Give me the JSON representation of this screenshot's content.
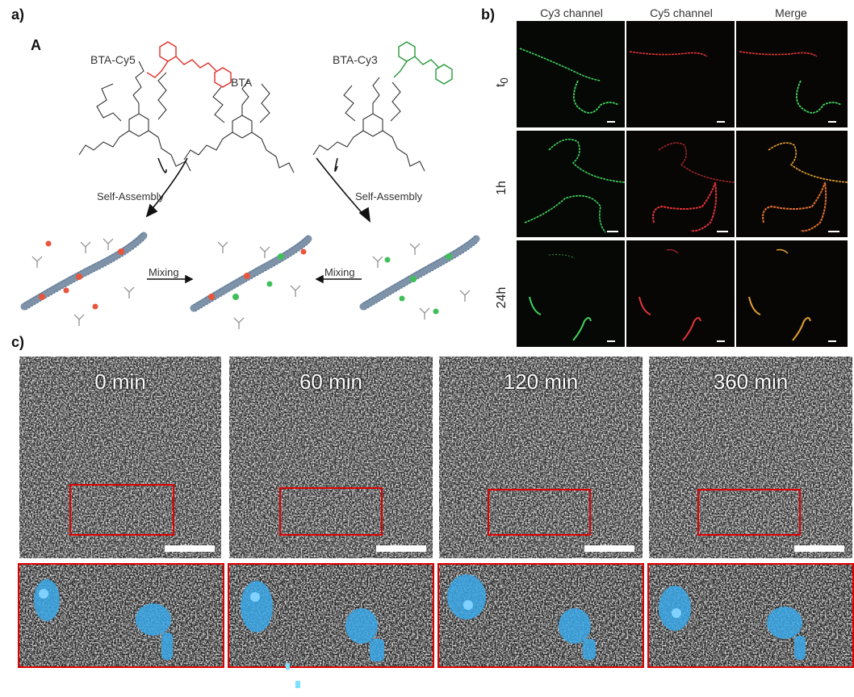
{
  "panel_labels": {
    "a": "a)",
    "b": "b)",
    "c": "c)"
  },
  "scheme": {
    "sublabel": "A",
    "molecules": {
      "left": "BTA-Cy5",
      "center": "BTA",
      "right": "BTA-Cy3"
    },
    "arrows": {
      "left": "Self-Assembly",
      "right": "Self-Assembly"
    },
    "mixing": {
      "left": "Mixing",
      "right": "Mixing"
    },
    "colors": {
      "cy5": "#e0302a",
      "cy3": "#2a9a3a",
      "fiber": "#7f93a8",
      "dye_red": "#e8553c",
      "dye_green": "#3fbf5a"
    }
  },
  "microscopy": {
    "columns": [
      "Cy3 channel",
      "Cy5 channel",
      "Merge"
    ],
    "rows": [
      "t0",
      "1h",
      "24h"
    ],
    "colors": {
      "cy3": "#3fd05a",
      "cy5": "#e03535",
      "merge": "#e0a030"
    }
  },
  "em": {
    "times": [
      "0 min",
      "60 min",
      "120 min",
      "360 min"
    ],
    "colors": {
      "highlight": "#e00000",
      "particle": "#3aa8e8"
    }
  }
}
